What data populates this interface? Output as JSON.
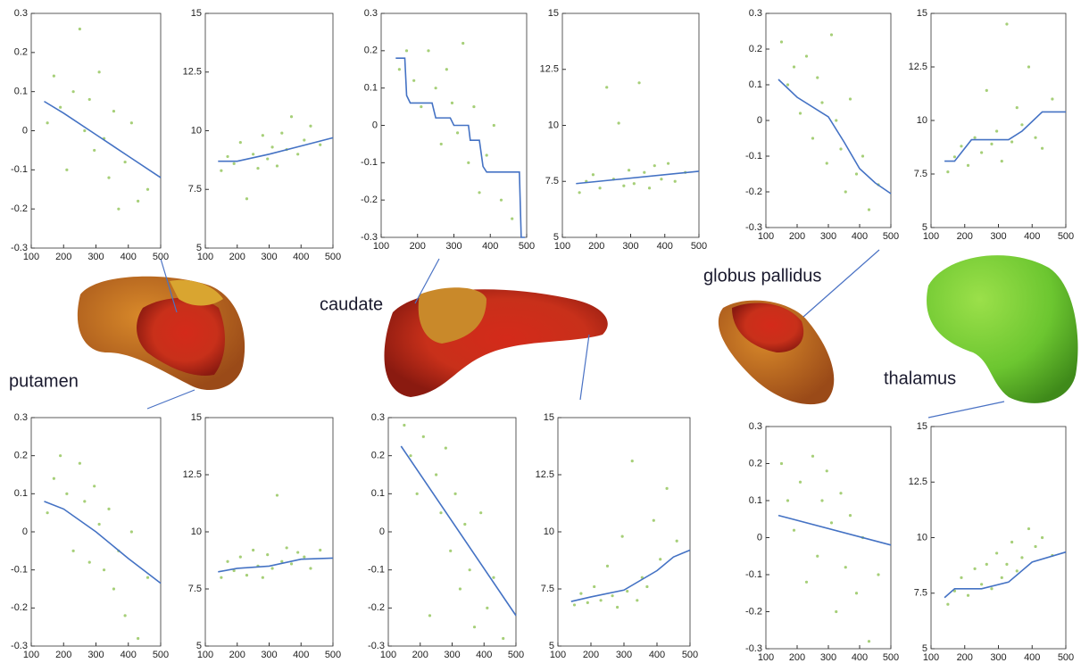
{
  "chart_data": [
    {
      "type": "scatter",
      "xlim": [
        100,
        500
      ],
      "xticks": [
        100,
        200,
        300,
        400,
        500
      ],
      "ylim": [
        -0.3,
        0.3
      ],
      "yticks": [
        -0.3,
        -0.2,
        -0.1,
        0,
        0.1,
        0.2,
        0.3
      ],
      "series": [
        {
          "type": "scatter",
          "color": "#a6cf78",
          "x": [
            150,
            170,
            190,
            210,
            230,
            250,
            265,
            280,
            295,
            310,
            325,
            340,
            355,
            370,
            390,
            410,
            430,
            460
          ],
          "values": [
            0.02,
            0.14,
            0.06,
            -0.1,
            0.1,
            0.26,
            0.0,
            0.08,
            -0.05,
            0.15,
            -0.02,
            -0.12,
            0.05,
            -0.2,
            -0.08,
            0.02,
            -0.18,
            -0.15
          ]
        },
        {
          "type": "line",
          "color": "#4472c4",
          "x": [
            140,
            200,
            300,
            400,
            500
          ],
          "values": [
            0.075,
            0.045,
            -0.01,
            -0.065,
            -0.12
          ]
        }
      ]
    },
    {
      "type": "scatter",
      "xlim": [
        100,
        500
      ],
      "xticks": [
        100,
        200,
        300,
        400,
        500
      ],
      "ylim": [
        5,
        15
      ],
      "yticks": [
        5,
        7.5,
        10,
        12.5,
        15
      ],
      "series": [
        {
          "type": "scatter",
          "color": "#a6cf78",
          "x": [
            150,
            170,
            190,
            210,
            230,
            250,
            265,
            280,
            295,
            310,
            325,
            340,
            355,
            370,
            390,
            410,
            430,
            460
          ],
          "values": [
            8.3,
            8.9,
            8.6,
            9.5,
            7.1,
            9.0,
            8.4,
            9.8,
            8.8,
            9.3,
            8.5,
            9.9,
            9.2,
            10.6,
            9.0,
            9.6,
            10.2,
            9.4
          ]
        },
        {
          "type": "line",
          "color": "#4472c4",
          "x": [
            140,
            200,
            300,
            400,
            500
          ],
          "values": [
            8.7,
            8.7,
            9.0,
            9.35,
            9.7
          ]
        }
      ]
    },
    {
      "type": "scatter",
      "xlim": [
        100,
        500
      ],
      "xticks": [
        100,
        200,
        300,
        400,
        500
      ],
      "ylim": [
        -0.3,
        0.3
      ],
      "yticks": [
        -0.3,
        -0.2,
        -0.1,
        0,
        0.1,
        0.2,
        0.3
      ],
      "series": [
        {
          "type": "scatter",
          "color": "#a6cf78",
          "x": [
            150,
            170,
            190,
            210,
            230,
            250,
            265,
            280,
            295,
            310,
            325,
            340,
            355,
            370,
            390,
            410,
            430,
            460
          ],
          "values": [
            0.15,
            0.2,
            0.12,
            0.05,
            0.2,
            0.1,
            -0.05,
            0.15,
            0.06,
            -0.02,
            0.22,
            -0.1,
            0.05,
            -0.18,
            -0.08,
            0.0,
            -0.2,
            -0.25
          ]
        },
        {
          "type": "line",
          "color": "#4472c4",
          "x": [
            140,
            165,
            170,
            180,
            240,
            250,
            290,
            300,
            340,
            345,
            370,
            380,
            390,
            480,
            485,
            495
          ],
          "values": [
            0.18,
            0.18,
            0.08,
            0.06,
            0.06,
            0.02,
            0.02,
            0,
            0,
            -0.04,
            -0.04,
            -0.11,
            -0.125,
            -0.125,
            -0.3,
            -0.3
          ]
        }
      ]
    },
    {
      "type": "scatter",
      "xlim": [
        100,
        500
      ],
      "xticks": [
        100,
        200,
        300,
        400,
        500
      ],
      "ylim": [
        5,
        15
      ],
      "yticks": [
        5,
        7.5,
        10,
        12.5,
        15
      ],
      "series": [
        {
          "type": "scatter",
          "color": "#a6cf78",
          "x": [
            150,
            170,
            190,
            210,
            230,
            250,
            265,
            280,
            295,
            310,
            325,
            340,
            355,
            370,
            390,
            410,
            430,
            460
          ],
          "values": [
            7.0,
            7.5,
            7.8,
            7.2,
            11.7,
            7.6,
            10.1,
            7.3,
            8.0,
            7.4,
            11.9,
            7.9,
            7.2,
            8.2,
            7.6,
            8.3,
            7.5,
            7.9
          ]
        },
        {
          "type": "line",
          "color": "#4472c4",
          "x": [
            140,
            500
          ],
          "values": [
            7.4,
            7.95
          ]
        }
      ]
    },
    {
      "type": "scatter",
      "xlim": [
        100,
        500
      ],
      "xticks": [
        100,
        200,
        300,
        400,
        500
      ],
      "ylim": [
        -0.3,
        0.3
      ],
      "yticks": [
        -0.3,
        -0.2,
        -0.1,
        0,
        0.1,
        0.2,
        0.3
      ],
      "series": [
        {
          "type": "scatter",
          "color": "#a6cf78",
          "x": [
            150,
            170,
            190,
            210,
            230,
            250,
            265,
            280,
            295,
            310,
            325,
            340,
            355,
            370,
            390,
            410,
            430,
            460
          ],
          "values": [
            0.22,
            0.1,
            0.15,
            0.02,
            0.18,
            -0.05,
            0.12,
            0.05,
            -0.12,
            0.24,
            0.0,
            -0.08,
            -0.2,
            0.06,
            -0.15,
            -0.1,
            -0.25,
            -0.18
          ]
        },
        {
          "type": "line",
          "color": "#4472c4",
          "x": [
            140,
            200,
            300,
            350,
            400,
            450,
            500
          ],
          "values": [
            0.115,
            0.065,
            0.01,
            -0.06,
            -0.135,
            -0.175,
            -0.205
          ]
        }
      ]
    },
    {
      "type": "scatter",
      "xlim": [
        100,
        500
      ],
      "xticks": [
        100,
        200,
        300,
        400,
        500
      ],
      "ylim": [
        5,
        15
      ],
      "yticks": [
        5,
        7.5,
        10,
        12.5,
        15
      ],
      "series": [
        {
          "type": "scatter",
          "color": "#a6cf78",
          "x": [
            150,
            170,
            190,
            210,
            230,
            250,
            265,
            280,
            295,
            310,
            325,
            340,
            355,
            370,
            390,
            410,
            430,
            460
          ],
          "values": [
            7.6,
            8.3,
            8.8,
            7.9,
            9.2,
            8.5,
            11.4,
            8.9,
            9.5,
            8.1,
            14.5,
            9.0,
            10.6,
            9.8,
            12.5,
            9.2,
            8.7,
            11.0
          ]
        },
        {
          "type": "line",
          "color": "#4472c4",
          "x": [
            140,
            170,
            220,
            330,
            370,
            430,
            500
          ],
          "values": [
            8.1,
            8.1,
            9.1,
            9.1,
            9.5,
            10.4,
            10.4
          ]
        }
      ]
    },
    {
      "type": "scatter",
      "xlim": [
        100,
        500
      ],
      "xticks": [
        100,
        200,
        300,
        400,
        500
      ],
      "ylim": [
        -0.3,
        0.3
      ],
      "yticks": [
        -0.3,
        -0.2,
        -0.1,
        0,
        0.1,
        0.2,
        0.3
      ],
      "series": [
        {
          "type": "scatter",
          "color": "#a6cf78",
          "x": [
            150,
            170,
            190,
            210,
            230,
            250,
            265,
            280,
            295,
            310,
            325,
            340,
            355,
            370,
            390,
            410,
            430,
            460
          ],
          "values": [
            0.05,
            0.14,
            0.2,
            0.1,
            -0.05,
            0.18,
            0.08,
            -0.08,
            0.12,
            0.02,
            -0.1,
            0.06,
            -0.15,
            -0.05,
            -0.22,
            0.0,
            -0.28,
            -0.12
          ]
        },
        {
          "type": "line",
          "color": "#4472c4",
          "x": [
            140,
            200,
            300,
            400,
            500
          ],
          "values": [
            0.08,
            0.06,
            0.0,
            -0.07,
            -0.135
          ]
        }
      ]
    },
    {
      "type": "scatter",
      "xlim": [
        100,
        500
      ],
      "xticks": [
        100,
        200,
        300,
        400,
        500
      ],
      "ylim": [
        5,
        15
      ],
      "yticks": [
        5,
        7.5,
        10,
        12.5,
        15
      ],
      "series": [
        {
          "type": "scatter",
          "color": "#a6cf78",
          "x": [
            150,
            170,
            190,
            210,
            230,
            250,
            265,
            280,
            295,
            310,
            325,
            340,
            355,
            370,
            390,
            410,
            430,
            460
          ],
          "values": [
            8.0,
            8.7,
            8.3,
            8.9,
            8.1,
            9.2,
            8.5,
            8.0,
            9.0,
            8.4,
            11.6,
            8.7,
            9.3,
            8.6,
            9.1,
            8.9,
            8.4,
            9.2
          ]
        },
        {
          "type": "line",
          "color": "#4472c4",
          "x": [
            140,
            200,
            300,
            400,
            500
          ],
          "values": [
            8.25,
            8.4,
            8.5,
            8.8,
            8.85
          ]
        }
      ]
    },
    {
      "type": "scatter",
      "xlim": [
        100,
        500
      ],
      "xticks": [
        100,
        200,
        300,
        400,
        500
      ],
      "ylim": [
        -0.3,
        0.3
      ],
      "yticks": [
        -0.3,
        -0.2,
        -0.1,
        0,
        0.1,
        0.2,
        0.3
      ],
      "series": [
        {
          "type": "scatter",
          "color": "#a6cf78",
          "x": [
            150,
            170,
            190,
            210,
            230,
            250,
            265,
            280,
            295,
            310,
            325,
            340,
            355,
            370,
            390,
            410,
            430,
            460
          ],
          "values": [
            0.28,
            0.2,
            0.1,
            0.25,
            -0.22,
            0.15,
            0.05,
            0.22,
            -0.05,
            0.1,
            -0.15,
            0.02,
            -0.1,
            -0.25,
            0.05,
            -0.2,
            -0.12,
            -0.28
          ]
        },
        {
          "type": "line",
          "color": "#4472c4",
          "x": [
            140,
            500
          ],
          "values": [
            0.225,
            -0.22
          ]
        }
      ]
    },
    {
      "type": "scatter",
      "xlim": [
        100,
        500
      ],
      "xticks": [
        100,
        200,
        300,
        400,
        500
      ],
      "ylim": [
        5,
        15
      ],
      "yticks": [
        5,
        7.5,
        10,
        12.5,
        15
      ],
      "series": [
        {
          "type": "scatter",
          "color": "#a6cf78",
          "x": [
            150,
            170,
            190,
            210,
            230,
            250,
            265,
            280,
            295,
            310,
            325,
            340,
            355,
            370,
            390,
            410,
            430,
            460
          ],
          "values": [
            6.8,
            7.3,
            6.9,
            7.6,
            7.0,
            8.5,
            7.2,
            6.7,
            9.8,
            7.4,
            13.1,
            7.0,
            8.0,
            7.6,
            10.5,
            8.8,
            11.9,
            9.6
          ]
        },
        {
          "type": "line",
          "color": "#4472c4",
          "x": [
            140,
            200,
            300,
            400,
            450,
            500
          ],
          "values": [
            6.95,
            7.15,
            7.45,
            8.3,
            8.9,
            9.2
          ]
        }
      ]
    },
    {
      "type": "scatter",
      "xlim": [
        100,
        500
      ],
      "xticks": [
        100,
        200,
        300,
        400,
        500
      ],
      "ylim": [
        -0.3,
        0.3
      ],
      "yticks": [
        -0.3,
        -0.2,
        -0.1,
        0,
        0.1,
        0.2,
        0.3
      ],
      "series": [
        {
          "type": "scatter",
          "color": "#a6cf78",
          "x": [
            150,
            170,
            190,
            210,
            230,
            250,
            265,
            280,
            295,
            310,
            325,
            340,
            355,
            370,
            390,
            410,
            430,
            460
          ],
          "values": [
            0.2,
            0.1,
            0.02,
            0.15,
            -0.12,
            0.22,
            -0.05,
            0.1,
            0.18,
            0.04,
            -0.2,
            0.12,
            -0.08,
            0.06,
            -0.15,
            0.0,
            -0.28,
            -0.1
          ]
        },
        {
          "type": "line",
          "color": "#4472c4",
          "x": [
            140,
            500
          ],
          "values": [
            0.06,
            -0.02
          ]
        }
      ]
    },
    {
      "type": "scatter",
      "xlim": [
        100,
        500
      ],
      "xticks": [
        100,
        200,
        300,
        400,
        500
      ],
      "ylim": [
        5,
        15
      ],
      "yticks": [
        5,
        7.5,
        10,
        12.5,
        15
      ],
      "series": [
        {
          "type": "scatter",
          "color": "#a6cf78",
          "x": [
            150,
            170,
            190,
            210,
            230,
            250,
            265,
            280,
            295,
            310,
            325,
            340,
            355,
            370,
            390,
            410,
            430,
            460
          ],
          "values": [
            7.0,
            7.6,
            8.2,
            7.4,
            8.6,
            7.9,
            8.8,
            7.7,
            9.3,
            8.2,
            8.8,
            9.8,
            8.5,
            9.1,
            10.4,
            9.6,
            10.0,
            9.2
          ]
        },
        {
          "type": "line",
          "color": "#4472c4",
          "x": [
            140,
            170,
            250,
            330,
            400,
            500
          ],
          "values": [
            7.3,
            7.7,
            7.7,
            8.0,
            8.9,
            9.35
          ]
        }
      ]
    }
  ],
  "structures": [
    {
      "label": "putamen"
    },
    {
      "label": "caudate"
    },
    {
      "label": "globus pallidus"
    },
    {
      "label": "thalamus"
    }
  ]
}
